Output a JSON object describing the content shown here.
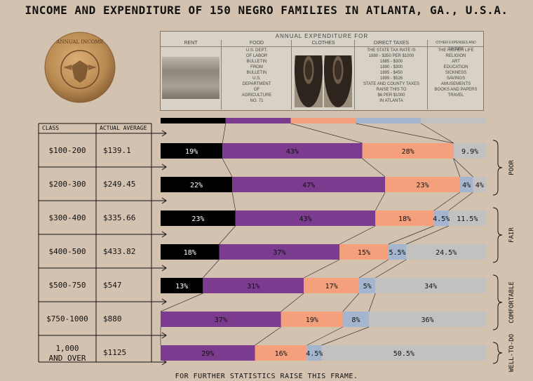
{
  "title": "INCOME AND EXPENDITURE OF 150 NEGRO FAMILIES IN ATLANTA, GA., U.S.A.",
  "footer": "FOR FURTHER STATISTICS RAISE THIS FRAME.",
  "medal": {
    "text_top": "ANNUAL INCOME"
  },
  "photo_strip": {
    "heading": "ANNUAL EXPENDITURE FOR",
    "columns": [
      {
        "header": "RENT",
        "text": []
      },
      {
        "header": "FOOD",
        "text": [
          "U.S. DEPT.",
          "OF LABOR",
          "BULLETIN",
          "FROM",
          "BULLETIN",
          "U.S.",
          "DEPARTMENT",
          "OF",
          "AGRICULTURE",
          "NO. 71"
        ]
      },
      {
        "header": "CLOTHES",
        "text": []
      },
      {
        "header": "DIRECT TAXES",
        "text": [
          "THE STATE TAX RATE IS",
          "1880 - $350 PER $1000",
          "1885 - $300",
          "1890 - $300",
          "1895 - $450",
          "1899 - $526",
          "STATE AND COUNTY TAXES",
          "RAISE THIS TO",
          "$6 PER $1000",
          "IN ATLANTA"
        ]
      },
      {
        "header": "OTHER EXPENSES AND SAVINGS",
        "text": [
          "THE HIGHER LIFE",
          "RELIGION",
          "ART",
          "EDUCATION",
          "SICKNESS",
          "SAVINGS",
          "AMUSEMENTS",
          "BOOKS AND PAPERS",
          "TRAVEL"
        ]
      }
    ]
  },
  "colors": {
    "rent": "#000000",
    "food": "#7b3b8f",
    "clothes": "#f5a07c",
    "taxes": "#a4b6cf",
    "other": "#c3c1c0",
    "background": "#d3c2b0"
  },
  "table": {
    "header_class": "CLASS",
    "header_avg": "ACTUAL AVERAGE"
  },
  "groups": [
    {
      "label": "POOR"
    },
    {
      "label": "FAIR"
    },
    {
      "label": "COMFORTABLE"
    },
    {
      "label": "WELL-TO-DO"
    }
  ],
  "chart_data": {
    "type": "bar",
    "stacked": "horizontal-100%",
    "series_names": [
      "Rent",
      "Food",
      "Clothes",
      "Direct Taxes",
      "Other Expenses and Savings"
    ],
    "categories": [
      "$100-200",
      "$200-300",
      "$300-400",
      "$400-500",
      "$500-750",
      "$750-1000",
      "1,000 AND OVER"
    ],
    "actual_average": [
      "$139.1",
      "$249.45",
      "$335.66",
      "$433.82",
      "$547",
      "$880",
      "$1125"
    ],
    "rows": [
      {
        "values": [
          19,
          43,
          28,
          0.1,
          9.9
        ],
        "labels": [
          "19%",
          "43%",
          "28%",
          "",
          "9.9%"
        ]
      },
      {
        "values": [
          22,
          47,
          23,
          4,
          4
        ],
        "labels": [
          "22%",
          "47%",
          "23%",
          "4%",
          "4%"
        ]
      },
      {
        "values": [
          23,
          43,
          18,
          4.5,
          11.5
        ],
        "labels": [
          "23%",
          "43%",
          "18%",
          "4.5%",
          "11.5%"
        ]
      },
      {
        "values": [
          18,
          37,
          15,
          5.5,
          24.5
        ],
        "labels": [
          "18%",
          "37%",
          "15%",
          "5.5%",
          "24.5%"
        ]
      },
      {
        "values": [
          13,
          31,
          17,
          5,
          34
        ],
        "labels": [
          "13%",
          "31%",
          "17%",
          "5%",
          "34%"
        ]
      },
      {
        "values": [
          0,
          37,
          19,
          8,
          36
        ],
        "labels": [
          "",
          "37%",
          "19%",
          "8%",
          "36%"
        ]
      },
      {
        "values": [
          0,
          29,
          16,
          4.5,
          50.5
        ],
        "labels": [
          "",
          "29%",
          "16%",
          "4.5%",
          "50.5%"
        ]
      }
    ],
    "groups": [
      {
        "label": "POOR",
        "rows": [
          0,
          1
        ]
      },
      {
        "label": "FAIR",
        "rows": [
          2,
          3
        ]
      },
      {
        "label": "COMFORTABLE",
        "rows": [
          4,
          5
        ]
      },
      {
        "label": "WELL-TO-DO",
        "rows": [
          6
        ]
      }
    ],
    "xlim": [
      0,
      100
    ]
  }
}
